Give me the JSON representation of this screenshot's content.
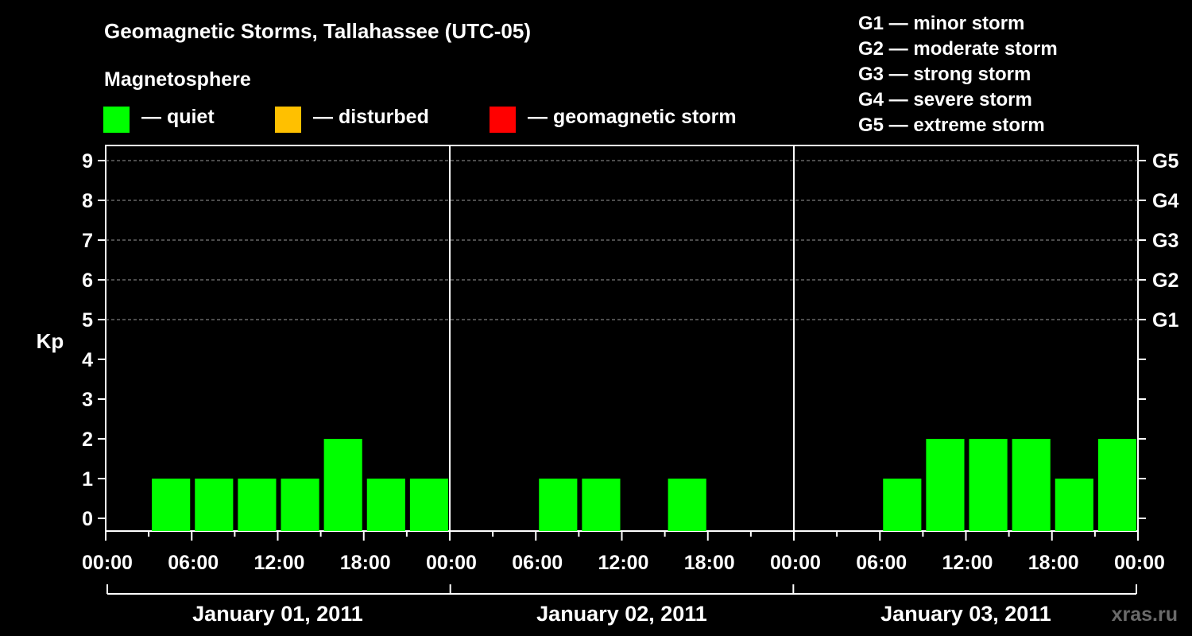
{
  "title": "Geomagnetic Storms, Tallahassee (UTC-05)",
  "subtitle": "Magnetosphere",
  "legend": [
    {
      "label": "— quiet",
      "color": "#00ff00"
    },
    {
      "label": "— disturbed",
      "color": "#ffc000"
    },
    {
      "label": "— geomagnetic storm",
      "color": "#ff0000"
    }
  ],
  "storm_levels": [
    {
      "label": "G1 — minor storm"
    },
    {
      "label": "G2 — moderate storm"
    },
    {
      "label": "G3 — strong storm"
    },
    {
      "label": "G4 — severe storm"
    },
    {
      "label": "G5 — extreme storm"
    }
  ],
  "watermark": "xras.ru",
  "chart_data": {
    "type": "bar",
    "ylabel": "Kp",
    "ylim": [
      0,
      9
    ],
    "y_ticks": [
      "0",
      "1",
      "2",
      "3",
      "4",
      "5",
      "6",
      "7",
      "8",
      "9"
    ],
    "right_ticks": [
      {
        "kp": 5,
        "label": "G1"
      },
      {
        "kp": 6,
        "label": "G2"
      },
      {
        "kp": 7,
        "label": "G3"
      },
      {
        "kp": 8,
        "label": "G4"
      },
      {
        "kp": 9,
        "label": "G5"
      }
    ],
    "dashed_gridlines_kp": [
      5,
      6,
      7,
      8,
      9
    ],
    "x_ticks": [
      "00:00",
      "06:00",
      "12:00",
      "18:00",
      "00:00",
      "06:00",
      "12:00",
      "18:00",
      "00:00",
      "06:00",
      "12:00",
      "18:00",
      "00:00"
    ],
    "days": [
      "January 01, 2011",
      "January 02, 2011",
      "January 03, 2011"
    ],
    "interval_hours": 3,
    "series": [
      {
        "color": "#00ff00",
        "values": [
          0,
          1,
          1,
          1,
          1,
          2,
          1,
          1,
          0,
          0,
          1,
          1,
          0,
          1,
          0,
          0,
          0,
          0,
          1,
          2,
          2,
          2,
          1,
          2
        ]
      }
    ]
  }
}
